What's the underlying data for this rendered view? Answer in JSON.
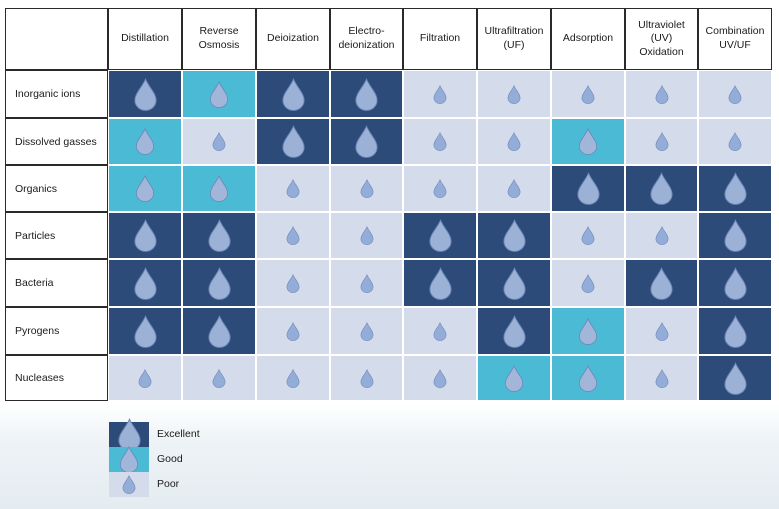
{
  "columns": [
    "Distillation",
    "Reverse\nOsmosis",
    "Deioization",
    "Electro-\ndeionization",
    "Filtration",
    "Ultrafiltration\n(UF)",
    "Adsorption",
    "Ultraviolet\n(UV)\nOxidation",
    "Combination\nUV/UF"
  ],
  "rows": [
    {
      "label": "Inorganic ions",
      "ratings": [
        "excellent",
        "good",
        "excellent",
        "excellent",
        "poor",
        "poor",
        "poor",
        "poor",
        "poor"
      ]
    },
    {
      "label": "Dissolved gasses",
      "ratings": [
        "good",
        "poor",
        "excellent",
        "excellent",
        "poor",
        "poor",
        "good",
        "poor",
        "poor"
      ]
    },
    {
      "label": "Organics",
      "ratings": [
        "good",
        "good",
        "poor",
        "poor",
        "poor",
        "poor",
        "excellent",
        "excellent",
        "excellent"
      ]
    },
    {
      "label": "Particles",
      "ratings": [
        "excellent",
        "excellent",
        "poor",
        "poor",
        "excellent",
        "excellent",
        "poor",
        "poor",
        "excellent"
      ]
    },
    {
      "label": "Bacteria",
      "ratings": [
        "excellent",
        "excellent",
        "poor",
        "poor",
        "excellent",
        "excellent",
        "poor",
        "excellent",
        "excellent"
      ]
    },
    {
      "label": "Pyrogens",
      "ratings": [
        "excellent",
        "excellent",
        "poor",
        "poor",
        "poor",
        "excellent",
        "good",
        "poor",
        "excellent"
      ]
    },
    {
      "label": "Nucleases",
      "ratings": [
        "poor",
        "poor",
        "poor",
        "poor",
        "poor",
        "good",
        "good",
        "poor",
        "excellent"
      ]
    }
  ],
  "legend": [
    {
      "key": "excellent",
      "label": "Excellent"
    },
    {
      "key": "good",
      "label": "Good"
    },
    {
      "key": "poor",
      "label": "Poor"
    }
  ],
  "colors": {
    "excellent": {
      "bg": "#2c4b78",
      "drop": "#9cb1d6"
    },
    "good": {
      "bg": "#4bbad4",
      "drop": "#a2b6da"
    },
    "poor": {
      "bg": "#d4dbeb",
      "drop": "#93acd8"
    },
    "drop_stroke": "#6b86b8"
  },
  "icons": {
    "rating": "water-drop-icon"
  }
}
